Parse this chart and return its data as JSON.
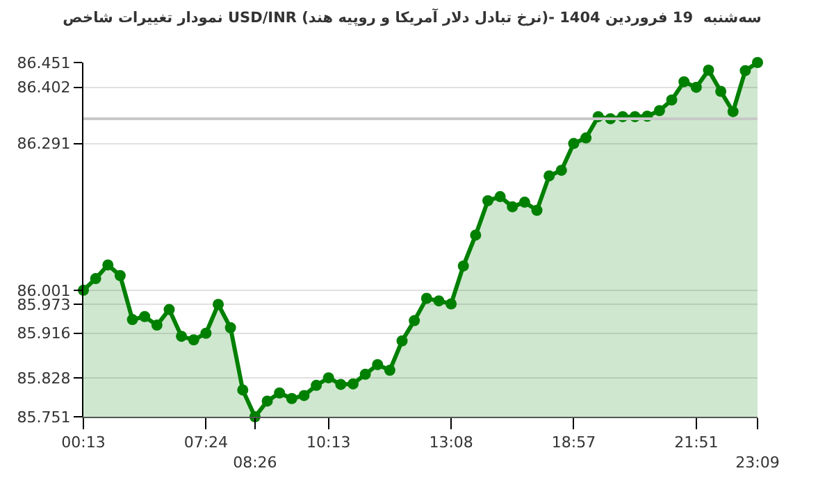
{
  "chart_data": {
    "type": "area",
    "title": "نمودار تغییرات شاخص USD/INR (نرخ تبادل دلار آمریکا و روپیه هند)- سه‌شنبه  19 فروردین 1404",
    "categories": [
      "00:13",
      null,
      null,
      null,
      null,
      null,
      null,
      null,
      null,
      null,
      "07:24",
      null,
      null,
      null,
      "08:26",
      null,
      null,
      null,
      null,
      null,
      "10:13",
      null,
      null,
      null,
      null,
      null,
      null,
      null,
      null,
      null,
      "13:08",
      null,
      null,
      null,
      null,
      null,
      null,
      null,
      null,
      null,
      "18:57",
      null,
      null,
      null,
      null,
      null,
      null,
      null,
      null,
      null,
      "21:51",
      null,
      null,
      null,
      null,
      "23:09"
    ],
    "series": [
      {
        "color": "#008000",
        "values": [
          86.001,
          86.024,
          86.051,
          86.03,
          85.943,
          85.949,
          85.932,
          85.963,
          85.91,
          85.903,
          85.916,
          85.973,
          85.927,
          85.804,
          85.751,
          85.782,
          85.798,
          85.787,
          85.793,
          85.813,
          85.828,
          85.815,
          85.816,
          85.835,
          85.854,
          85.843,
          85.901,
          85.941,
          85.985,
          85.98,
          85.974,
          86.049,
          86.11,
          86.178,
          86.186,
          86.166,
          86.175,
          86.159,
          86.227,
          86.238,
          86.291,
          86.302,
          86.344,
          86.34,
          86.344,
          86.344,
          86.345,
          86.356,
          86.377,
          86.413,
          86.402,
          86.436,
          86.394,
          86.354,
          86.435,
          86.451
        ]
      }
    ],
    "ylim": [
      85.751,
      86.451
    ],
    "yticks": [
      85.751,
      85.828,
      85.916,
      85.973,
      86.001,
      86.291,
      86.402,
      86.451
    ],
    "ref_lines": [
      {
        "axis": "y",
        "value": 86.34,
        "color": "#c8c8c8"
      }
    ],
    "grid": "y",
    "legend": false,
    "marker": "circle",
    "line_style": "solid"
  }
}
